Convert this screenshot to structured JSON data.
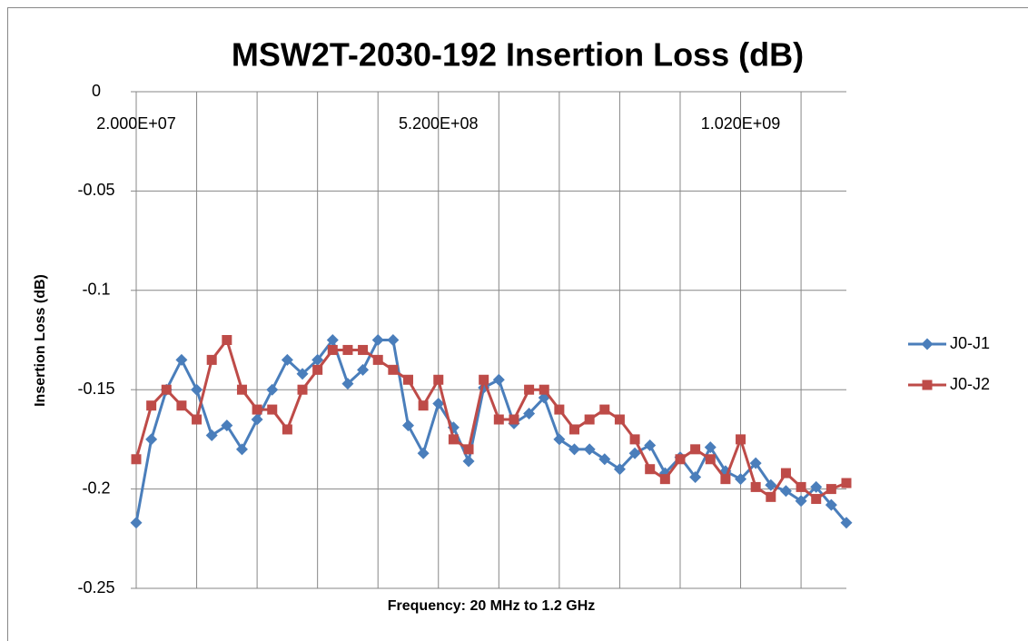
{
  "chart_data": {
    "type": "line",
    "title": "MSW2T-2030-192 Insertion Loss (dB)",
    "x_label": "Frequency:  20 MHz to 1.2 GHz",
    "y_label": "Insertion Loss (dB)",
    "categories": [
      "2.000E+07",
      null,
      null,
      null,
      null,
      null,
      null,
      null,
      null,
      null,
      null,
      null,
      null,
      null,
      null,
      null,
      null,
      null,
      null,
      null,
      "5.200E+08",
      null,
      null,
      null,
      null,
      null,
      null,
      null,
      null,
      null,
      null,
      null,
      null,
      null,
      null,
      null,
      null,
      null,
      null,
      null,
      "1.020E+09",
      null,
      null,
      null,
      null,
      null,
      null,
      null
    ],
    "series": [
      {
        "name": "J0-J1",
        "color": "#4a7ebb",
        "marker": "diamond",
        "values": [
          -0.217,
          -0.175,
          -0.15,
          -0.135,
          -0.15,
          -0.173,
          -0.168,
          -0.18,
          -0.165,
          -0.15,
          -0.135,
          -0.142,
          -0.135,
          -0.125,
          -0.147,
          -0.14,
          -0.125,
          -0.125,
          -0.168,
          -0.182,
          -0.157,
          -0.169,
          -0.186,
          -0.149,
          -0.145,
          -0.167,
          -0.162,
          -0.154,
          -0.175,
          -0.18,
          -0.18,
          -0.185,
          -0.19,
          -0.182,
          -0.178,
          -0.192,
          -0.184,
          -0.194,
          -0.179,
          -0.191,
          -0.195,
          -0.187,
          -0.198,
          -0.201,
          -0.206,
          -0.199,
          -0.208,
          -0.217
        ]
      },
      {
        "name": "J0-J2",
        "color": "#be4b48",
        "marker": "square",
        "values": [
          -0.185,
          -0.158,
          -0.15,
          -0.158,
          -0.165,
          -0.135,
          -0.125,
          -0.15,
          -0.16,
          -0.16,
          -0.17,
          -0.15,
          -0.14,
          -0.13,
          -0.13,
          -0.13,
          -0.135,
          -0.14,
          -0.145,
          -0.158,
          -0.145,
          -0.175,
          -0.18,
          -0.145,
          -0.165,
          -0.165,
          -0.15,
          -0.15,
          -0.16,
          -0.17,
          -0.165,
          -0.16,
          -0.165,
          -0.175,
          -0.19,
          -0.195,
          -0.185,
          -0.18,
          -0.185,
          -0.195,
          -0.175,
          -0.199,
          -0.204,
          -0.192,
          -0.199,
          -0.205,
          -0.2,
          -0.197
        ]
      }
    ],
    "ylim": [
      -0.25,
      0
    ],
    "yticks": [
      0,
      -0.05,
      -0.1,
      -0.15,
      -0.2,
      -0.25
    ],
    "grid": true,
    "legend": "right"
  }
}
